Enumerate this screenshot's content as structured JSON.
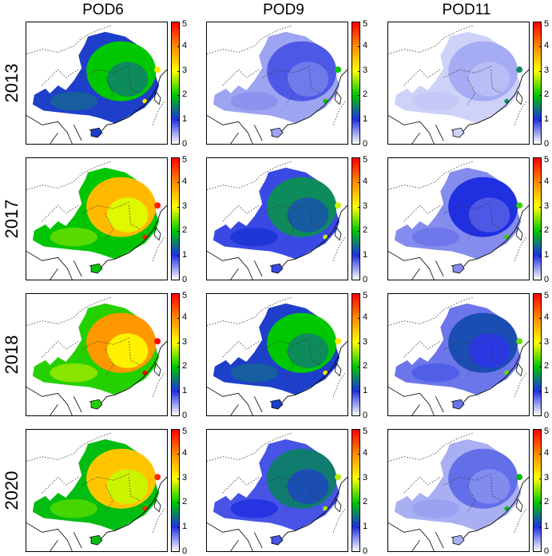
{
  "columns": [
    "POD6",
    "POD9",
    "POD11"
  ],
  "rows": [
    "2013",
    "2017",
    "2018",
    "2020"
  ],
  "colorbar": {
    "ticks": [
      "0",
      "1",
      "2",
      "3",
      "4",
      "5"
    ],
    "colors": [
      "#ffffff",
      "#2030e0",
      "#00c800",
      "#ffff00",
      "#ff8c00",
      "#ff0000"
    ]
  },
  "panel_levels": [
    [
      2.0,
      0.8,
      0.4
    ],
    [
      3.6,
      1.6,
      1.0
    ],
    [
      3.9,
      2.0,
      1.2
    ],
    [
      3.5,
      1.5,
      0.7
    ]
  ]
}
